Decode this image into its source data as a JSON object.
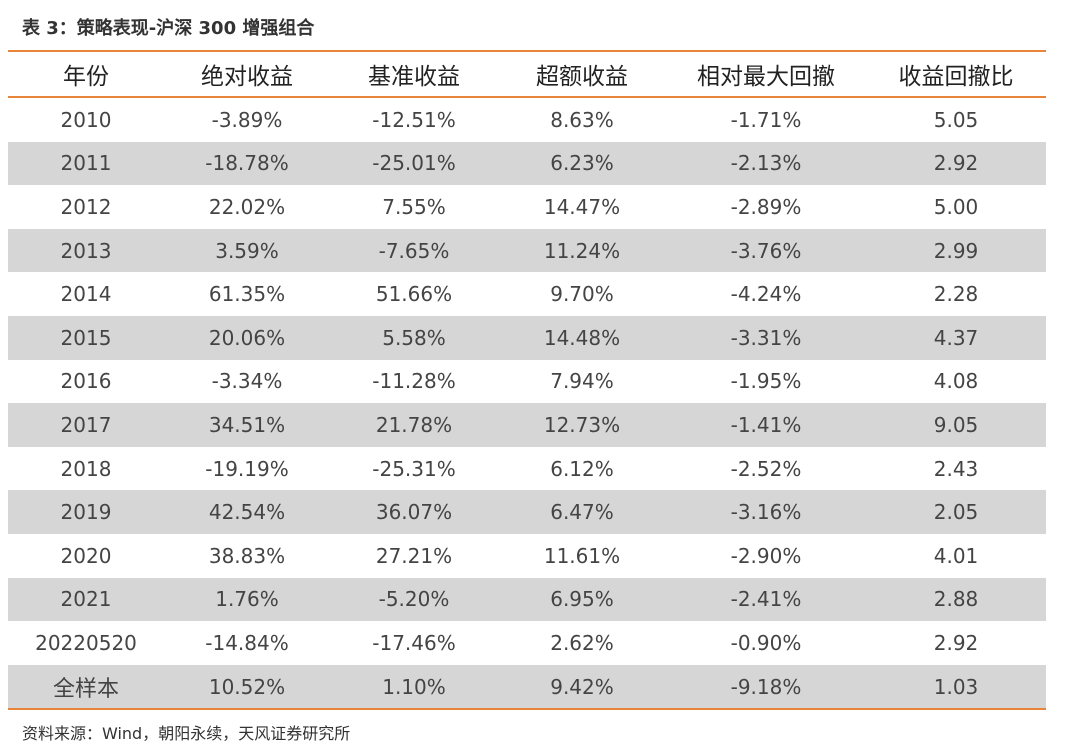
{
  "title": "表 3：策略表现-沪深 300 增强组合",
  "table": {
    "headers": [
      "年份",
      "绝对收益",
      "基准收益",
      "超额收益",
      "相对最大回撤",
      "收益回撤比"
    ],
    "rows": [
      [
        "2010",
        "-3.89%",
        "-12.51%",
        "8.63%",
        "-1.71%",
        "5.05"
      ],
      [
        "2011",
        "-18.78%",
        "-25.01%",
        "6.23%",
        "-2.13%",
        "2.92"
      ],
      [
        "2012",
        "22.02%",
        "7.55%",
        "14.47%",
        "-2.89%",
        "5.00"
      ],
      [
        "2013",
        "3.59%",
        "-7.65%",
        "11.24%",
        "-3.76%",
        "2.99"
      ],
      [
        "2014",
        "61.35%",
        "51.66%",
        "9.70%",
        "-4.24%",
        "2.28"
      ],
      [
        "2015",
        "20.06%",
        "5.58%",
        "14.48%",
        "-3.31%",
        "4.37"
      ],
      [
        "2016",
        "-3.34%",
        "-11.28%",
        "7.94%",
        "-1.95%",
        "4.08"
      ],
      [
        "2017",
        "34.51%",
        "21.78%",
        "12.73%",
        "-1.41%",
        "9.05"
      ],
      [
        "2018",
        "-19.19%",
        "-25.31%",
        "6.12%",
        "-2.52%",
        "2.43"
      ],
      [
        "2019",
        "42.54%",
        "36.07%",
        "6.47%",
        "-3.16%",
        "2.05"
      ],
      [
        "2020",
        "38.83%",
        "27.21%",
        "11.61%",
        "-2.90%",
        "4.01"
      ],
      [
        "2021",
        "1.76%",
        "-5.20%",
        "6.95%",
        "-2.41%",
        "2.88"
      ],
      [
        "20220520",
        "-14.84%",
        "-17.46%",
        "2.62%",
        "-0.90%",
        "2.92"
      ],
      [
        "全样本",
        "10.52%",
        "1.10%",
        "9.42%",
        "-9.18%",
        "1.03"
      ]
    ]
  },
  "source": "资料来源：Wind，朝阳永续，天风证券研究所",
  "colors": {
    "accent_rule": "#E8853A",
    "row_shade": "#D6D6D6"
  }
}
